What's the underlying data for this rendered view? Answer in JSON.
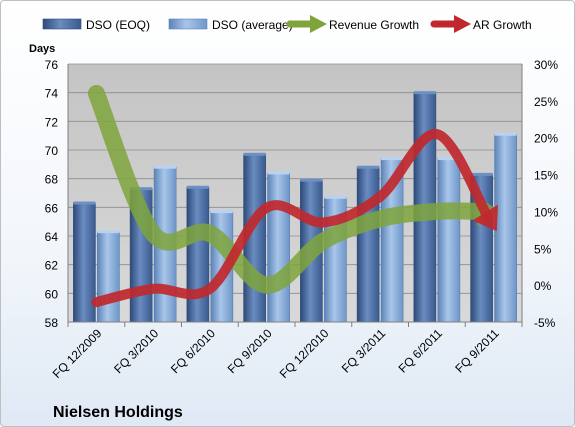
{
  "chart_data": {
    "type": "bar",
    "title": "Nielsen Holdings",
    "ylabel": "Days",
    "categories": [
      "FQ 12/2009",
      "FQ 3/2010",
      "FQ 6/2010",
      "FQ 9/2010",
      "FQ 12/2010",
      "FQ 3/2011",
      "FQ 6/2011",
      "FQ 9/2011"
    ],
    "ylim": [
      58,
      76
    ],
    "yticks": [
      "58",
      "60",
      "62",
      "64",
      "66",
      "68",
      "70",
      "72",
      "74",
      "76"
    ],
    "y2lim": [
      -5,
      30
    ],
    "y2ticks": [
      "-5%",
      "0%",
      "5%",
      "10%",
      "15%",
      "20%",
      "25%",
      "30%"
    ],
    "series": [
      {
        "name": "DSO (EOQ)",
        "type": "bar",
        "axis": "left",
        "color": "#4f6fa3",
        "values": [
          66.3,
          67.3,
          67.4,
          69.7,
          67.9,
          68.8,
          74.0,
          68.3
        ]
      },
      {
        "name": "DSO (average)",
        "type": "bar",
        "axis": "left",
        "color": "#7fa6d8",
        "values": [
          64.3,
          68.8,
          65.7,
          68.4,
          66.7,
          69.4,
          69.4,
          71.1
        ]
      },
      {
        "name": "Revenue Growth",
        "type": "line",
        "axis": "right",
        "color": "#7fa43c",
        "values": [
          26.0,
          7.0,
          7.0,
          0.0,
          6.0,
          9.0,
          10.0,
          10.0
        ]
      },
      {
        "name": "AR Growth",
        "type": "line",
        "axis": "right",
        "color": "#c0282e",
        "values": [
          -2.3,
          -0.5,
          -0.5,
          10.5,
          8.5,
          12.0,
          20.5,
          8.0
        ]
      }
    ],
    "grid": true,
    "legend": "top"
  }
}
